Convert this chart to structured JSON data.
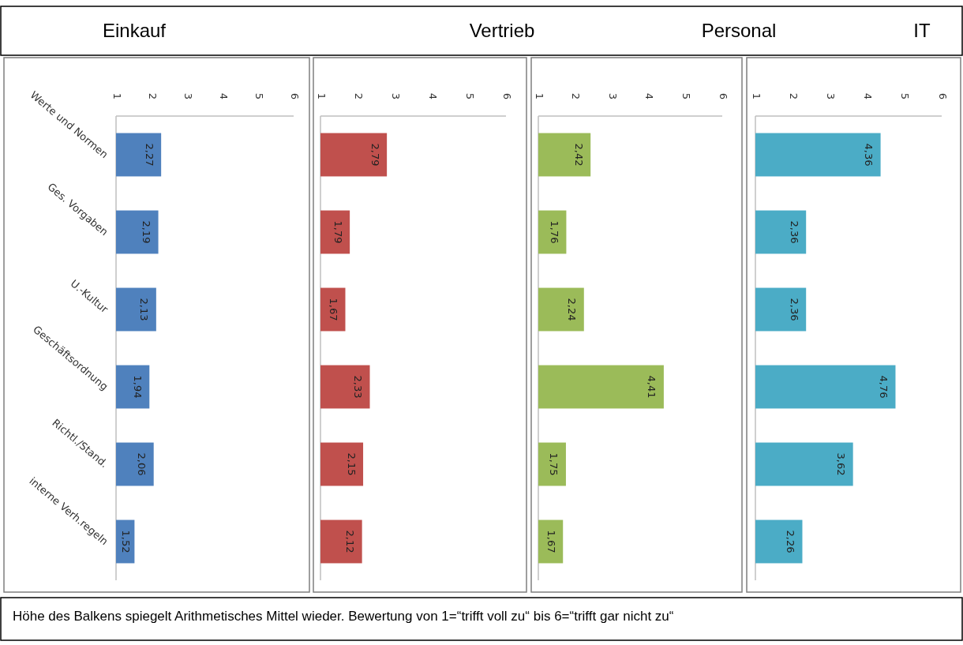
{
  "chart_data": [
    {
      "type": "bar",
      "orientation": "horizontal",
      "title": "Einkauf",
      "categories": [
        "Werte und Normen",
        "Ges. Vorgaben",
        "U.-Kultur",
        "Geschäftsordnung",
        "Richtl./Stand.",
        "interne Verh.regeln"
      ],
      "values": [
        2.27,
        2.19,
        2.13,
        1.94,
        2.06,
        1.52
      ],
      "value_labels": [
        "2,27",
        "2,19",
        "2,13",
        "1,94",
        "2,06",
        "1,52"
      ],
      "color": "#4f81bd",
      "xlim": [
        1,
        6
      ],
      "xticks": [
        1,
        2,
        3,
        4,
        5,
        6
      ],
      "annotations": [
        "Höhe des Balkens spiegelt Arithmetisches Mittel wieder. Bewertung von 1=“trifft voll zu“ bis 6=“trifft gar nicht zu“"
      ]
    },
    {
      "type": "bar",
      "orientation": "horizontal",
      "title": "Vertrieb",
      "categories": [
        null,
        null,
        null,
        null,
        null,
        null
      ],
      "values": [
        2.79,
        1.79,
        1.67,
        2.33,
        2.15,
        2.12
      ],
      "value_labels": [
        "2,79",
        "1,79",
        "1,67",
        "2,33",
        "2,15",
        "2,12"
      ],
      "color": "#c0504d",
      "xlim": [
        1,
        6
      ],
      "xticks": [
        1,
        2,
        3,
        4,
        5,
        6
      ]
    },
    {
      "type": "bar",
      "orientation": "horizontal",
      "title": "Personal",
      "categories": [
        null,
        null,
        null,
        null,
        null,
        null
      ],
      "values": [
        2.42,
        1.76,
        2.24,
        4.41,
        1.75,
        1.67
      ],
      "value_labels": [
        "2,42",
        "1,76",
        "2,24",
        "4,41",
        "1,75",
        "1,67"
      ],
      "color": "#9bbb59",
      "xlim": [
        1,
        6
      ],
      "xticks": [
        1,
        2,
        3,
        4,
        5,
        6
      ]
    },
    {
      "type": "bar",
      "orientation": "horizontal",
      "title": "IT",
      "categories": [
        null,
        null,
        null,
        null,
        null,
        null
      ],
      "values": [
        4.36,
        2.36,
        2.36,
        4.76,
        3.62,
        2.26
      ],
      "value_labels": [
        "4,36",
        "2,36",
        "2,36",
        "4,76",
        "3,62",
        "2,26"
      ],
      "color": "#4bacc6",
      "xlim": [
        1,
        6
      ],
      "xticks": [
        1,
        2,
        3,
        4,
        5,
        6
      ]
    }
  ]
}
